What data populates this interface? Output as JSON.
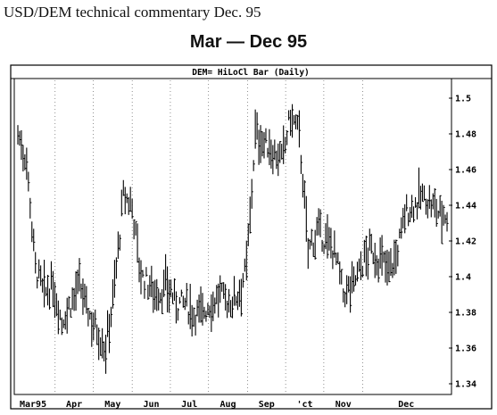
{
  "document_title": "USD/DEM technical commentary Dec. 95",
  "chart_heading": "Mar — Dec 95",
  "chart_data": {
    "type": "bar",
    "style": "high-low-close",
    "title": "DEM= HiLoCl Bar (Daily)",
    "xlabel": "",
    "ylabel": "",
    "ylim": [
      1.335,
      1.51
    ],
    "y_ticks": [
      "1.5",
      "1.48",
      "1.46",
      "1.44",
      "1.42",
      "1.4",
      "1.38",
      "1.36",
      "1.34"
    ],
    "y_axis_side": "right",
    "grid": "vertical dotted at month boundaries",
    "months": [
      "Mar95",
      "Apr",
      "May",
      "Jun",
      "Jul",
      "Aug",
      "Sep",
      "Oct",
      "Nov",
      "Dec"
    ],
    "month_labels": [
      "Mar95",
      "Apr",
      "May",
      "Jun",
      "Jul",
      "Aug",
      "Sep",
      "'ct",
      "Nov",
      "Dec"
    ],
    "weekly_close": [
      1.48,
      1.465,
      1.405,
      1.39,
      1.395,
      1.375,
      1.385,
      1.395,
      1.38,
      1.37,
      1.36,
      1.395,
      1.445,
      1.44,
      1.4,
      1.395,
      1.39,
      1.395,
      1.385,
      1.385,
      1.38,
      1.38,
      1.385,
      1.39,
      1.385,
      1.39,
      1.405,
      1.48,
      1.475,
      1.47,
      1.465,
      1.49,
      1.48,
      1.415,
      1.425,
      1.42,
      1.415,
      1.39,
      1.395,
      1.405,
      1.415,
      1.41,
      1.405,
      1.41,
      1.435,
      1.44,
      1.445,
      1.44,
      1.435
    ]
  }
}
